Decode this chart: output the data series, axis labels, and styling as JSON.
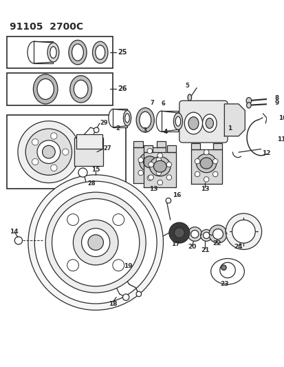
{
  "title": "91105  2700C",
  "bg_color": "#ffffff",
  "line_color": "#2a2a2a",
  "title_fontsize": 10,
  "fig_width": 4.14,
  "fig_height": 5.33,
  "dpi": 100
}
